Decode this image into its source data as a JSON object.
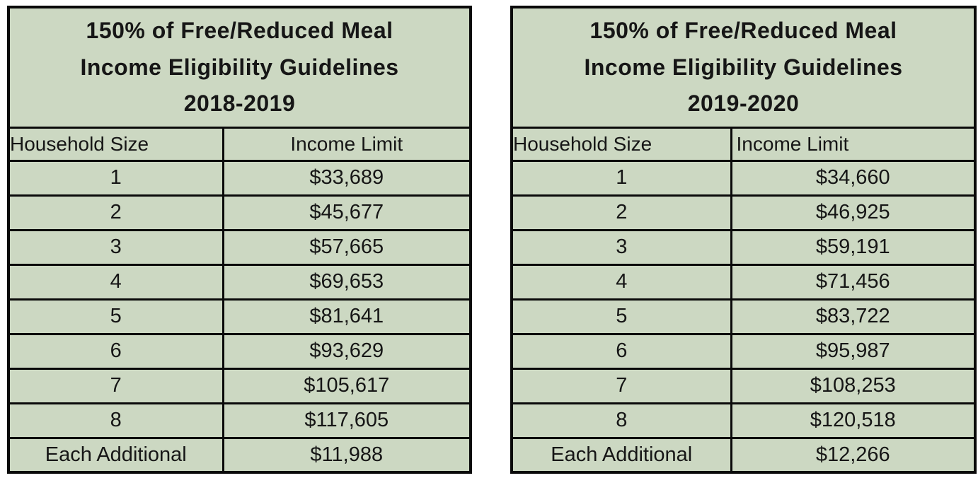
{
  "colors": {
    "table_fill": "#ccd8c2",
    "border": "#0a0a0a",
    "text": "#161616",
    "page_background": "#ffffff"
  },
  "tables": [
    {
      "title_lines": [
        "150% of Free/Reduced Meal",
        "Income Eligibility Guidelines",
        "2018-2019"
      ],
      "headers": {
        "household": "Household Size",
        "income": "Income Limit"
      },
      "rows": [
        {
          "size": "1",
          "income": "$33,689"
        },
        {
          "size": "2",
          "income": "$45,677"
        },
        {
          "size": "3",
          "income": "$57,665"
        },
        {
          "size": "4",
          "income": "$69,653"
        },
        {
          "size": "5",
          "income": "$81,641"
        },
        {
          "size": "6",
          "income": "$93,629"
        },
        {
          "size": "7",
          "income": "$105,617"
        },
        {
          "size": "8",
          "income": "$117,605"
        },
        {
          "size": "Each Additional",
          "income": "$11,988"
        }
      ]
    },
    {
      "title_lines": [
        "150% of Free/Reduced Meal",
        "Income Eligibility Guidelines",
        "2019-2020"
      ],
      "headers": {
        "household": "Household Size",
        "income": "Income Limit"
      },
      "rows": [
        {
          "size": "1",
          "income": "$34,660"
        },
        {
          "size": "2",
          "income": "$46,925"
        },
        {
          "size": "3",
          "income": "$59,191"
        },
        {
          "size": "4",
          "income": "$71,456"
        },
        {
          "size": "5",
          "income": "$83,722"
        },
        {
          "size": "6",
          "income": "$95,987"
        },
        {
          "size": "7",
          "income": "$108,253"
        },
        {
          "size": "8",
          "income": "$120,518"
        },
        {
          "size": "Each Additional",
          "income": "$12,266"
        }
      ]
    }
  ],
  "chart_data": [
    {
      "type": "table",
      "title": "150% of Free/Reduced Meal Income Eligibility Guidelines 2018-2019",
      "columns": [
        "Household Size",
        "Income Limit"
      ],
      "rows": [
        [
          "1",
          "$33,689"
        ],
        [
          "2",
          "$45,677"
        ],
        [
          "3",
          "$57,665"
        ],
        [
          "4",
          "$69,653"
        ],
        [
          "5",
          "$81,641"
        ],
        [
          "6",
          "$93,629"
        ],
        [
          "7",
          "$105,617"
        ],
        [
          "8",
          "$117,605"
        ],
        [
          "Each Additional",
          "$11,988"
        ]
      ]
    },
    {
      "type": "table",
      "title": "150% of Free/Reduced Meal Income Eligibility Guidelines 2019-2020",
      "columns": [
        "Household Size",
        "Income Limit"
      ],
      "rows": [
        [
          "1",
          "$34,660"
        ],
        [
          "2",
          "$46,925"
        ],
        [
          "3",
          "$59,191"
        ],
        [
          "4",
          "$71,456"
        ],
        [
          "5",
          "$83,722"
        ],
        [
          "6",
          "$95,987"
        ],
        [
          "7",
          "$108,253"
        ],
        [
          "8",
          "$120,518"
        ],
        [
          "Each Additional",
          "$12,266"
        ]
      ]
    }
  ]
}
